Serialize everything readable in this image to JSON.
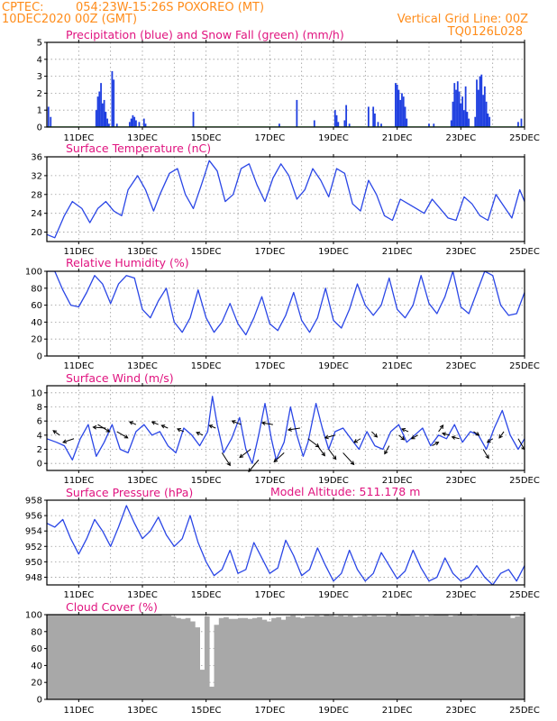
{
  "header": {
    "line1_left": "CPTEC:",
    "line1_center": "054:23W-15:26S   POXOREO (MT)",
    "line2_left": "10DEC2020 00Z (GMT)",
    "line2_right": "Vertical Grid Line: 00Z",
    "line3_right": "TQ0126L028",
    "model_altitude": "Model Altitude: 511.178 m"
  },
  "colors": {
    "header": "#ff8c1a",
    "panel_title": "#e0137f",
    "precipitation": "#1f3fe0",
    "snowfall": "#1a9a1a",
    "series_line": "#2a46e6",
    "wind_arrows": "#000000",
    "cloud_fill": "#a8a8a8"
  },
  "x_axis": {
    "start_day": 10.0,
    "end_day": 25.0,
    "tick_days": [
      11,
      13,
      15,
      17,
      19,
      21,
      23,
      25
    ],
    "tick_labels": [
      "11DEC",
      "13DEC",
      "15DEC",
      "17DEC",
      "19DEC",
      "21DEC",
      "23DEC",
      "25DEC"
    ],
    "vertical_grid_days": [
      11,
      12,
      13,
      14,
      15,
      16,
      17,
      18,
      19,
      20,
      21,
      22,
      23,
      24
    ]
  },
  "chart_data": [
    {
      "type": "bar",
      "title": "Precipitation (blue) and Snow Fall (green) (mm/h)",
      "ylim": [
        0,
        5
      ],
      "yticks": [
        0,
        1,
        2,
        3,
        4,
        5
      ],
      "grid": true,
      "series": [
        {
          "name": "Precipitation",
          "x": [
            10.05,
            10.12,
            11.55,
            11.6,
            11.65,
            11.7,
            11.75,
            11.8,
            11.85,
            11.9,
            11.95,
            12.05,
            12.1,
            12.2,
            12.6,
            12.65,
            12.7,
            12.75,
            12.8,
            12.9,
            13.05,
            13.1,
            14.6,
            17.3,
            17.85,
            18.4,
            19.05,
            19.1,
            19.15,
            19.35,
            19.4,
            19.5,
            20.1,
            20.25,
            20.3,
            20.4,
            20.5,
            20.95,
            21.0,
            21.05,
            21.1,
            21.15,
            21.2,
            21.25,
            21.3,
            22.0,
            22.15,
            22.7,
            22.75,
            22.8,
            22.85,
            22.9,
            22.95,
            23.0,
            23.05,
            23.1,
            23.15,
            23.2,
            23.25,
            23.45,
            23.5,
            23.55,
            23.6,
            23.65,
            23.7,
            23.75,
            23.8,
            23.85,
            23.9,
            24.8,
            24.9
          ],
          "values": [
            1.2,
            0.6,
            1.0,
            1.8,
            2.1,
            2.6,
            1.4,
            1.6,
            0.9,
            0.5,
            0.2,
            3.3,
            2.8,
            0.2,
            0.3,
            0.5,
            0.7,
            0.6,
            0.4,
            0.3,
            0.5,
            0.2,
            0.9,
            0.2,
            1.6,
            0.4,
            1.0,
            0.7,
            0.3,
            0.4,
            1.3,
            0.2,
            1.2,
            1.2,
            0.8,
            0.3,
            0.2,
            2.6,
            2.5,
            2.2,
            1.6,
            2.0,
            1.8,
            1.2,
            0.5,
            0.2,
            0.2,
            0.4,
            1.5,
            2.6,
            2.2,
            2.7,
            2.1,
            1.4,
            1.8,
            1.0,
            2.4,
            0.9,
            0.5,
            0.6,
            2.8,
            2.2,
            3.0,
            3.1,
            1.9,
            2.4,
            1.5,
            0.8,
            0.6,
            0.3,
            0.5
          ]
        },
        {
          "name": "Snow Fall",
          "x": [
            10.0,
            25.0
          ],
          "values": [
            0,
            0
          ]
        }
      ]
    },
    {
      "type": "line",
      "title": "Surface Temperature (nC)",
      "ylim": [
        18,
        36
      ],
      "yticks": [
        20,
        24,
        28,
        32,
        36
      ],
      "grid": true,
      "x": [
        10.0,
        10.25,
        10.55,
        10.8,
        11.1,
        11.35,
        11.6,
        11.85,
        12.1,
        12.35,
        12.55,
        12.85,
        13.1,
        13.35,
        13.55,
        13.85,
        14.1,
        14.35,
        14.6,
        14.85,
        15.1,
        15.35,
        15.6,
        15.85,
        16.1,
        16.35,
        16.6,
        16.85,
        17.1,
        17.35,
        17.6,
        17.85,
        18.1,
        18.35,
        18.6,
        18.85,
        19.1,
        19.35,
        19.6,
        19.85,
        20.1,
        20.35,
        20.6,
        20.85,
        21.1,
        21.35,
        21.6,
        21.85,
        22.1,
        22.35,
        22.6,
        22.85,
        23.1,
        23.35,
        23.6,
        23.85,
        24.1,
        24.35,
        24.6,
        24.85,
        25.0
      ],
      "values": [
        19.5,
        18.8,
        23.5,
        26.5,
        25.0,
        22.0,
        25.0,
        26.5,
        24.5,
        23.5,
        29.0,
        32.0,
        29.0,
        24.5,
        28.0,
        32.5,
        33.5,
        28.0,
        25.0,
        30.0,
        35.2,
        33.0,
        26.5,
        28.0,
        33.5,
        34.5,
        30.0,
        26.5,
        31.5,
        34.5,
        32.0,
        27.0,
        29.0,
        33.5,
        31.0,
        27.5,
        33.5,
        32.5,
        26.0,
        24.5,
        31.0,
        28.0,
        23.5,
        22.5,
        27.0,
        26.0,
        25.0,
        24.0,
        27.0,
        25.0,
        23.0,
        22.5,
        27.5,
        26.0,
        23.5,
        22.5,
        28.0,
        25.5,
        23.0,
        29.0,
        26.5
      ]
    },
    {
      "type": "line",
      "title": "Relative Humidity (%)",
      "ylim": [
        0,
        100
      ],
      "yticks": [
        0,
        20,
        40,
        60,
        80,
        100
      ],
      "grid": true,
      "x": [
        10.0,
        10.25,
        10.5,
        10.75,
        11.0,
        11.25,
        11.5,
        11.75,
        12.0,
        12.25,
        12.5,
        12.75,
        13.0,
        13.25,
        13.5,
        13.75,
        14.0,
        14.25,
        14.5,
        14.75,
        15.0,
        15.25,
        15.5,
        15.75,
        16.0,
        16.25,
        16.5,
        16.75,
        17.0,
        17.25,
        17.5,
        17.75,
        18.0,
        18.25,
        18.5,
        18.75,
        19.0,
        19.25,
        19.5,
        19.75,
        20.0,
        20.25,
        20.5,
        20.75,
        21.0,
        21.25,
        21.5,
        21.75,
        22.0,
        22.25,
        22.5,
        22.75,
        23.0,
        23.25,
        23.5,
        23.75,
        24.0,
        24.25,
        24.5,
        24.75,
        25.0
      ],
      "values": [
        100,
        100,
        78,
        60,
        58,
        75,
        95,
        85,
        62,
        85,
        95,
        92,
        55,
        45,
        65,
        80,
        40,
        28,
        45,
        78,
        45,
        28,
        40,
        62,
        38,
        25,
        45,
        70,
        38,
        30,
        48,
        75,
        42,
        28,
        45,
        80,
        42,
        33,
        55,
        85,
        60,
        48,
        60,
        92,
        55,
        45,
        60,
        95,
        62,
        50,
        70,
        100,
        58,
        50,
        75,
        100,
        95,
        60,
        48,
        50,
        75
      ]
    },
    {
      "type": "line",
      "title": "Surface Wind (m/s)",
      "ylim": [
        -1,
        11
      ],
      "yticks": [
        0,
        2,
        4,
        6,
        8,
        10
      ],
      "grid": true,
      "x": [
        10.0,
        10.3,
        10.55,
        10.8,
        11.05,
        11.3,
        11.55,
        11.8,
        12.05,
        12.3,
        12.55,
        12.8,
        13.05,
        13.3,
        13.55,
        13.8,
        14.05,
        14.3,
        14.55,
        14.8,
        15.05,
        15.2,
        15.35,
        15.55,
        15.8,
        16.05,
        16.25,
        16.45,
        16.65,
        16.85,
        17.05,
        17.2,
        17.45,
        17.65,
        17.85,
        18.05,
        18.2,
        18.45,
        18.65,
        18.85,
        19.05,
        19.3,
        19.55,
        19.8,
        20.05,
        20.3,
        20.55,
        20.8,
        21.05,
        21.3,
        21.55,
        21.8,
        22.05,
        22.3,
        22.55,
        22.8,
        23.05,
        23.3,
        23.55,
        23.8,
        24.05,
        24.3,
        24.55,
        24.8,
        25.0
      ],
      "values": [
        3.5,
        3.0,
        2.5,
        0.5,
        3.5,
        5.5,
        1.0,
        3.0,
        5.5,
        2.0,
        1.5,
        4.5,
        5.5,
        4.0,
        4.5,
        2.5,
        1.5,
        5.0,
        4.0,
        2.5,
        4.5,
        9.5,
        5.5,
        1.5,
        3.5,
        6.5,
        2.0,
        0.0,
        4.0,
        8.5,
        3.5,
        0.5,
        3.0,
        8.0,
        4.0,
        1.0,
        3.0,
        8.5,
        5.0,
        2.0,
        4.5,
        5.0,
        3.5,
        2.0,
        4.5,
        2.5,
        2.0,
        4.5,
        5.5,
        3.0,
        4.0,
        5.0,
        2.5,
        4.0,
        3.5,
        5.5,
        3.0,
        4.5,
        4.0,
        2.0,
        5.0,
        7.5,
        4.0,
        2.0,
        3.5
      ],
      "arrows": {
        "x": [
          10.4,
          10.85,
          11.6,
          11.85,
          12.2,
          12.8,
          13.5,
          13.8,
          14.3,
          14.9,
          15.3,
          15.5,
          16.1,
          16.4,
          16.65,
          17.1,
          17.45,
          17.95,
          18.2,
          18.5,
          18.85,
          19.05,
          19.3,
          19.85,
          20.2,
          20.75,
          21.05,
          21.35,
          21.65,
          22.1,
          22.3,
          22.65,
          22.95,
          23.4,
          23.7,
          24.0,
          24.35,
          24.8
        ],
        "y": [
          4.0,
          3.5,
          5.5,
          5.0,
          4.5,
          5.5,
          5.5,
          5.0,
          4.5,
          4.0,
          5.0,
          1.5,
          5.5,
          2.0,
          0.5,
          5.5,
          1.5,
          5.0,
          3.5,
          2.5,
          2.0,
          4.0,
          1.5,
          3.5,
          4.5,
          2.5,
          4.0,
          4.5,
          4.0,
          2.5,
          4.5,
          4.0,
          3.5,
          4.5,
          2.0,
          3.5,
          4.5,
          3.5
        ],
        "dx": [
          -7,
          -12,
          13,
          -14,
          12,
          -7,
          -7,
          -7,
          -7,
          -7,
          -7,
          9,
          -10,
          -12,
          -11,
          -12,
          -11,
          -13,
          12,
          8,
          8,
          -11,
          12,
          -7,
          6,
          -5,
          6,
          -7,
          -7,
          7,
          5,
          -8,
          -8,
          6,
          6,
          -6,
          -5,
          7
        ],
        "dy": [
          -5,
          4,
          8,
          -1,
          7,
          -3,
          -3,
          -3,
          -3,
          -3,
          -3,
          14,
          -4,
          9,
          13,
          -2,
          10,
          2,
          9,
          11,
          11,
          3,
          13,
          4,
          6,
          9,
          5,
          -3,
          4,
          -4,
          -7,
          -2,
          -2,
          4,
          10,
          4,
          7,
          12
        ]
      }
    },
    {
      "type": "line",
      "title": "Surface Pressure (hPa)",
      "ylim": [
        947,
        958
      ],
      "yticks": [
        948,
        950,
        952,
        954,
        956,
        958
      ],
      "grid": true,
      "x": [
        10.0,
        10.25,
        10.5,
        10.75,
        11.0,
        11.25,
        11.5,
        11.75,
        12.0,
        12.25,
        12.5,
        12.75,
        13.0,
        13.25,
        13.5,
        13.75,
        14.0,
        14.25,
        14.5,
        14.75,
        15.0,
        15.25,
        15.5,
        15.75,
        16.0,
        16.25,
        16.5,
        16.75,
        17.0,
        17.25,
        17.5,
        17.75,
        18.0,
        18.25,
        18.5,
        18.75,
        19.0,
        19.25,
        19.5,
        19.75,
        20.0,
        20.25,
        20.5,
        20.75,
        21.0,
        21.25,
        21.5,
        21.75,
        22.0,
        22.25,
        22.5,
        22.75,
        23.0,
        23.25,
        23.5,
        23.75,
        24.0,
        24.25,
        24.5,
        24.75,
        25.0
      ],
      "values": [
        955.0,
        954.5,
        955.5,
        953.0,
        951.0,
        953.0,
        955.5,
        954.0,
        952.0,
        954.5,
        957.3,
        955.0,
        953.0,
        954.0,
        955.8,
        953.5,
        952.0,
        953.0,
        956.0,
        952.5,
        950.0,
        948.2,
        949.0,
        951.5,
        948.5,
        949.0,
        952.5,
        950.5,
        948.5,
        949.2,
        952.8,
        950.8,
        948.2,
        949.0,
        951.8,
        949.5,
        947.5,
        948.5,
        951.5,
        949.0,
        947.5,
        948.5,
        951.2,
        949.5,
        947.8,
        948.8,
        951.5,
        949.2,
        947.5,
        948.0,
        950.5,
        948.5,
        947.5,
        948.0,
        949.5,
        948.0,
        947.0,
        948.5,
        949.0,
        947.5,
        949.5
      ]
    },
    {
      "type": "bar",
      "title": "Cloud Cover (%)",
      "ylim": [
        0,
        100
      ],
      "yticks": [
        0,
        20,
        40,
        60,
        80,
        100
      ],
      "grid": true,
      "x": [
        10.0,
        10.15,
        10.3,
        10.45,
        10.6,
        10.75,
        10.9,
        11.05,
        11.2,
        11.35,
        11.5,
        11.65,
        11.8,
        11.95,
        12.1,
        12.25,
        12.4,
        12.55,
        12.7,
        12.85,
        13.0,
        13.15,
        13.3,
        13.45,
        13.6,
        13.75,
        13.9,
        14.05,
        14.2,
        14.35,
        14.5,
        14.65,
        14.8,
        14.95,
        15.1,
        15.25,
        15.4,
        15.55,
        15.7,
        15.85,
        16.0,
        16.15,
        16.3,
        16.45,
        16.6,
        16.75,
        16.9,
        17.05,
        17.2,
        17.35,
        17.5,
        17.65,
        17.8,
        17.95,
        18.1,
        18.25,
        18.4,
        18.55,
        18.7,
        18.85,
        19.0,
        19.15,
        19.3,
        19.45,
        19.6,
        19.75,
        19.9,
        20.05,
        20.2,
        20.35,
        20.5,
        20.65,
        20.8,
        20.95,
        21.1,
        21.25,
        21.4,
        21.55,
        21.7,
        21.85,
        22.0,
        22.15,
        22.3,
        22.45,
        22.6,
        22.75,
        22.9,
        23.05,
        23.2,
        23.35,
        23.5,
        23.65,
        23.8,
        23.95,
        24.1,
        24.25,
        24.4,
        24.55,
        24.7,
        24.85
      ],
      "values": [
        100,
        100,
        100,
        100,
        100,
        100,
        100,
        100,
        100,
        100,
        100,
        100,
        100,
        100,
        100,
        100,
        100,
        100,
        100,
        100,
        100,
        100,
        100,
        100,
        99,
        99,
        98,
        96,
        95,
        96,
        92,
        85,
        35,
        98,
        15,
        88,
        96,
        97,
        95,
        95,
        96,
        96,
        95,
        96,
        97,
        94,
        92,
        96,
        97,
        94,
        98,
        99,
        97,
        96,
        98,
        98,
        99,
        98,
        100,
        99,
        98,
        99,
        98,
        99,
        97,
        98,
        99,
        98,
        99,
        98,
        98,
        99,
        98,
        99,
        100,
        100,
        99,
        98,
        99,
        98,
        99,
        100,
        100,
        100,
        98,
        99,
        100,
        100,
        100,
        99,
        100,
        100,
        100,
        100,
        100,
        100,
        100,
        96,
        98,
        100
      ]
    }
  ]
}
